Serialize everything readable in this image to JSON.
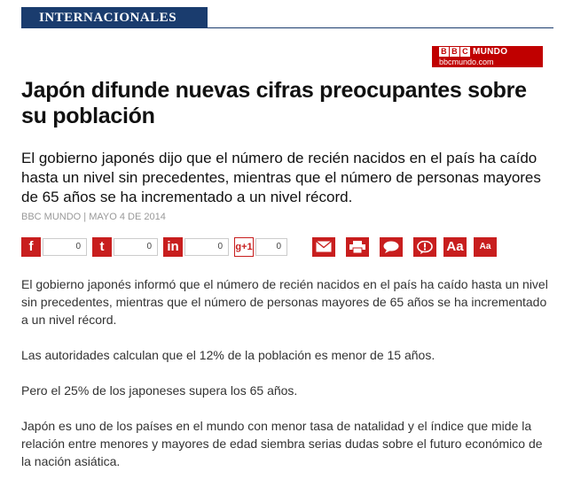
{
  "section": {
    "label": "INTERNACIONALES"
  },
  "brand": {
    "boxes": [
      "B",
      "B",
      "C"
    ],
    "name": "MUNDO",
    "url": "bbcmundo.com"
  },
  "article": {
    "headline": "Japón difunde nuevas cifras preocupantes sobre su población",
    "lede": "El gobierno japonés dijo que el número de recién nacidos en el país ha caído hasta un nivel sin precedentes, mientras que el número de personas mayores de 65 años se ha incrementado a un nivel récord.",
    "byline": "BBC MUNDO | MAYO 4 DE 2014",
    "paragraphs": [
      "El gobierno japonés informó que el número de recién nacidos en el país ha caído hasta un nivel sin precedentes, mientras que el número de personas mayores de 65 años se ha incrementado a un nivel récord.",
      "Las autoridades calculan que el 12% de la población es menor de 15 años.",
      "Pero el 25% de los japoneses supera los 65 años.",
      "Japón es uno de los países en el mundo con menor tasa de natalidad y el índice que mide la relación entre menores y mayores de edad siembra serias dudas sobre el futuro económico de la nación asiática."
    ]
  },
  "share": {
    "facebook": {
      "glyph": "f",
      "count": "0",
      "icon": "facebook-icon"
    },
    "twitter": {
      "glyph": "t",
      "count": "0",
      "icon": "twitter-icon"
    },
    "linkedin": {
      "glyph": "in",
      "count": "0",
      "icon": "linkedin-icon"
    },
    "googleplus": {
      "glyph": "g+1",
      "count": "0",
      "icon": "google-plus-icon"
    }
  },
  "tools": {
    "email_icon": "email-icon",
    "print_icon": "print-icon",
    "comment_icon": "comment-icon",
    "feedback_icon": "feedback-icon",
    "font_larger": "Aa",
    "font_smaller": "Aa"
  },
  "colors": {
    "accent": "#c81e1e",
    "section_bg": "#1a3c6e",
    "brand_red": "#c00000"
  }
}
